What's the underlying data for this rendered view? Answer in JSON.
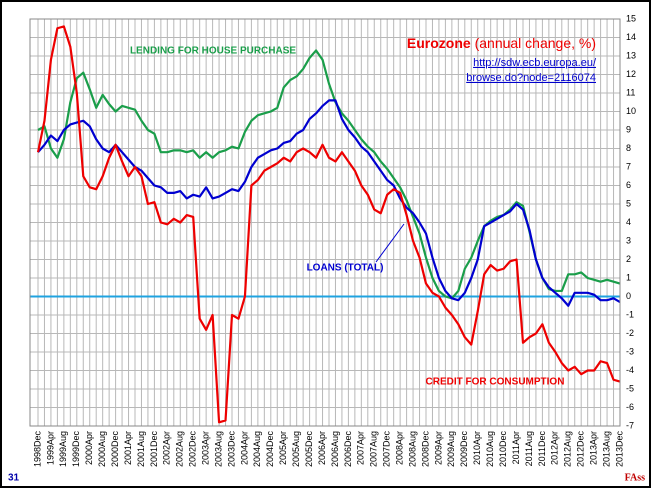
{
  "chart_data": {
    "type": "line",
    "title": "Eurozone",
    "subtitle": "(annual change, %)",
    "source_lines": [
      "http://sdw.ecb.europa.eu/",
      "browse.do?node=2116074"
    ],
    "page_number": "31",
    "footer": "FAss",
    "categories": [
      "1998Dec",
      null,
      "1999Apr",
      null,
      "1999Aug",
      null,
      "1999Dec",
      null,
      "2000Apr",
      null,
      "2000Aug",
      null,
      "2000Dec",
      null,
      "2001Apr",
      null,
      "2001Aug",
      null,
      "2001Dec",
      null,
      "2002Apr",
      null,
      "2002Aug",
      null,
      "2002Dec",
      null,
      "2003Apr",
      null,
      "2003Aug",
      null,
      "2003Dec",
      null,
      "2004Apr",
      null,
      "2004Aug",
      null,
      "2004Dec",
      null,
      "2005Apr",
      null,
      "2005Aug",
      null,
      "2005Dec",
      null,
      "2006Apr",
      null,
      "2006Aug",
      null,
      "2006Dec",
      null,
      "2007Apr",
      null,
      "2007Aug",
      null,
      "2007Dec",
      null,
      "2008Apr",
      null,
      "2008Aug",
      null,
      "2008Dec",
      null,
      "2009Apr",
      null,
      "2009Aug",
      null,
      "2009Dec",
      null,
      "2010Apr",
      null,
      "2010Aug",
      null,
      "2010Dec",
      null,
      "2011Apr",
      null,
      "2011Aug",
      null,
      "2011Dec",
      null,
      "2012Apr",
      null,
      "2012Aug",
      null,
      "2012Dec",
      null,
      "2013Apr",
      null,
      "2013Aug",
      null,
      "2013Dec"
    ],
    "series": [
      {
        "name": "LENDING FOR HOUSE PURCHASE",
        "color": "#1a9e4a",
        "values": [
          9.0,
          9.2,
          8.0,
          7.5,
          8.5,
          10.5,
          11.8,
          12.1,
          11.2,
          10.2,
          10.9,
          10.4,
          10.0,
          10.3,
          10.2,
          10.1,
          9.5,
          9.0,
          8.8,
          7.8,
          7.8,
          7.9,
          7.9,
          7.8,
          7.9,
          7.5,
          7.8,
          7.5,
          7.8,
          7.9,
          8.1,
          8.0,
          8.9,
          9.5,
          9.8,
          9.9,
          10.0,
          10.2,
          11.3,
          11.7,
          11.9,
          12.3,
          12.9,
          13.3,
          12.8,
          11.5,
          10.5,
          9.9,
          9.5,
          9.0,
          8.5,
          8.1,
          7.8,
          7.3,
          6.9,
          6.4,
          5.9,
          5.2,
          4.3,
          3.4,
          2.1,
          1.0,
          0.3,
          0.0,
          -0.1,
          0.3,
          1.5,
          2.1,
          3.0,
          3.8,
          4.1,
          4.3,
          4.4,
          4.7,
          5.1,
          4.9,
          3.5,
          2.0,
          1.0,
          0.4,
          0.3,
          0.3,
          1.2,
          1.2,
          1.3,
          1.0,
          0.9,
          0.8,
          0.9,
          0.8,
          0.7
        ]
      },
      {
        "name": "LOANS (TOTAL)",
        "color": "#0000d0",
        "values": [
          7.8,
          8.2,
          8.7,
          8.4,
          9.0,
          9.3,
          9.4,
          9.5,
          9.2,
          8.5,
          8.0,
          7.8,
          8.2,
          7.8,
          7.4,
          7.0,
          6.8,
          6.4,
          6.0,
          5.9,
          5.6,
          5.6,
          5.7,
          5.3,
          5.5,
          5.4,
          5.9,
          5.3,
          5.4,
          5.6,
          5.8,
          5.7,
          6.2,
          7.0,
          7.5,
          7.7,
          7.9,
          8.0,
          8.3,
          8.4,
          8.8,
          9.0,
          9.6,
          9.9,
          10.3,
          10.6,
          10.6,
          9.6,
          9.0,
          8.6,
          8.1,
          7.8,
          7.3,
          6.8,
          6.3,
          6.0,
          5.3,
          4.8,
          4.5,
          4.0,
          3.4,
          2.1,
          1.0,
          0.3,
          -0.1,
          -0.2,
          0.2,
          1.0,
          2.0,
          3.8,
          4.0,
          4.2,
          4.4,
          4.6,
          5.0,
          4.7,
          3.6,
          2.0,
          1.0,
          0.5,
          0.2,
          -0.1,
          -0.5,
          0.2,
          0.2,
          0.2,
          0.1,
          -0.2,
          -0.2,
          -0.1,
          -0.3
        ]
      },
      {
        "name": "CREDIT FOR CONSUMPTION",
        "color": "#ee0000",
        "values": [
          7.8,
          9.5,
          12.8,
          14.5,
          14.6,
          13.5,
          11.0,
          6.5,
          5.9,
          5.8,
          6.5,
          7.5,
          8.2,
          7.3,
          6.5,
          7.0,
          6.5,
          5.0,
          5.1,
          4.0,
          3.9,
          4.2,
          4.0,
          4.4,
          4.3,
          -1.2,
          -1.8,
          -1.0,
          -6.8,
          -6.7,
          -1.0,
          -1.2,
          0.0,
          6.0,
          6.3,
          6.8,
          7.0,
          7.2,
          7.5,
          7.3,
          7.8,
          8.0,
          7.8,
          7.5,
          8.2,
          7.5,
          7.3,
          7.8,
          7.3,
          6.8,
          6.0,
          5.5,
          4.7,
          4.5,
          5.5,
          5.8,
          5.6,
          4.4,
          3.0,
          2.1,
          0.7,
          0.2,
          0.0,
          -0.6,
          -1.0,
          -1.5,
          -2.2,
          -2.6,
          -0.8,
          1.2,
          1.7,
          1.4,
          1.5,
          1.9,
          2.0,
          -2.5,
          -2.2,
          -2.0,
          -1.5,
          -2.5,
          -3.0,
          -3.6,
          -4.0,
          -3.8,
          -4.2,
          -4.0,
          -4.0,
          -3.5,
          -3.6,
          -4.5,
          -4.6
        ]
      }
    ],
    "ylim": [
      -7,
      15
    ],
    "yticks": [
      -7,
      -6,
      -5,
      -4,
      -3,
      -2,
      -1,
      0,
      1,
      2,
      3,
      4,
      5,
      6,
      7,
      8,
      9,
      10,
      11,
      12,
      13,
      14,
      15
    ],
    "grid": true,
    "zero_line_color": "#1fa3e0"
  }
}
